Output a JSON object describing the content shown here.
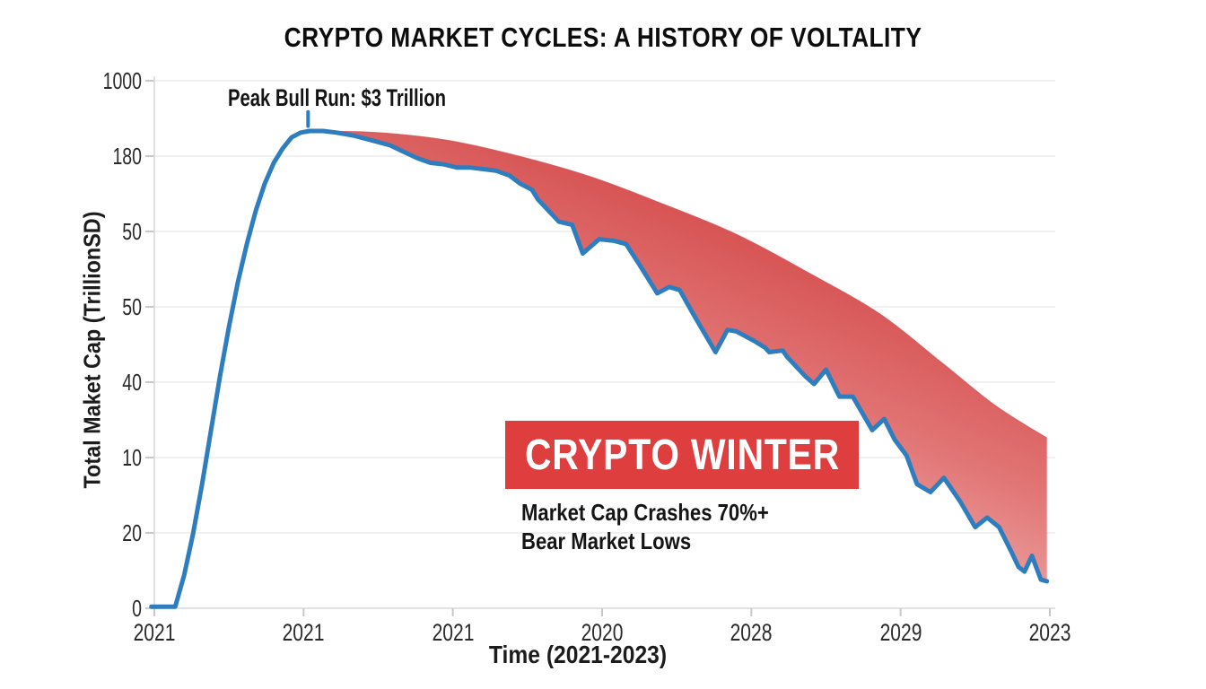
{
  "title": "CRYPTO MARKET CYCLES: A HISTORY OF VOLTALITY",
  "annotations": {
    "peak_label": "Peak Bull Run: $3 Trillion",
    "winter_label": "CRYPTO WINTER",
    "winter_sub1": "Market Cap Crashes 70%+",
    "winter_sub2": "Bear Market Lows"
  },
  "colors": {
    "line_blue": "#2e7dbe",
    "band_red_dark": "#d75454",
    "band_red_mid": "#e17474",
    "band_red_light": "#f8d6d6",
    "winter_box_red": "#df3e3e",
    "grid_gray": "#ebebeb",
    "axis_gray": "#d9d9d9",
    "tick_gray": "#c8c8c8"
  },
  "chart_data": {
    "type": "line",
    "title": "CRYPTO MARKET CYCLES: A HISTORY OF VOLTALITY",
    "xlabel": "Time (2021-2023)",
    "ylabel": "Total Maket Cap (TrillionSD)",
    "x_tick_labels": [
      "2021",
      "2021",
      "2021",
      "2020",
      "2028",
      "2029",
      "2023"
    ],
    "y_tick_labels": [
      "1000",
      "180",
      "50",
      "50",
      "40",
      "10",
      "20",
      "0"
    ],
    "grid": "horizontal",
    "legend": "none",
    "peak_value_trillions": 3,
    "crash_note": "70%+",
    "units": "trillion USD (as annotated: peak $3 Trillion)",
    "x_units": "tick index 0-6 across time axis 2021-2023",
    "series": [
      {
        "name": "Total Market Cap (actual, jagged line)",
        "color": "#2e7dbe",
        "points": [
          [
            -0.02,
            0.01
          ],
          [
            0.14,
            0.01
          ],
          [
            0.2,
            0.21
          ],
          [
            0.26,
            0.47
          ],
          [
            0.32,
            0.78
          ],
          [
            0.38,
            1.12
          ],
          [
            0.44,
            1.46
          ],
          [
            0.5,
            1.77
          ],
          [
            0.56,
            2.05
          ],
          [
            0.62,
            2.29
          ],
          [
            0.68,
            2.5
          ],
          [
            0.74,
            2.67
          ],
          [
            0.8,
            2.8
          ],
          [
            0.86,
            2.89
          ],
          [
            0.92,
            2.96
          ],
          [
            0.98,
            2.99
          ],
          [
            1.04,
            3.0
          ],
          [
            1.13,
            3.0
          ],
          [
            1.22,
            2.99
          ],
          [
            1.34,
            2.97
          ],
          [
            1.46,
            2.94
          ],
          [
            1.58,
            2.91
          ],
          [
            1.67,
            2.87
          ],
          [
            1.76,
            2.83
          ],
          [
            1.85,
            2.8
          ],
          [
            1.94,
            2.79
          ],
          [
            2.03,
            2.77
          ],
          [
            2.12,
            2.77
          ],
          [
            2.21,
            2.76
          ],
          [
            2.29,
            2.75
          ],
          [
            2.38,
            2.72
          ],
          [
            2.45,
            2.67
          ],
          [
            2.53,
            2.63
          ],
          [
            2.57,
            2.57
          ],
          [
            2.71,
            2.43
          ],
          [
            2.8,
            2.41
          ],
          [
            2.87,
            2.23
          ],
          [
            2.98,
            2.32
          ],
          [
            3.08,
            2.31
          ],
          [
            3.16,
            2.29
          ],
          [
            3.25,
            2.16
          ],
          [
            3.37,
            1.98
          ],
          [
            3.45,
            2.02
          ],
          [
            3.52,
            2.0
          ],
          [
            3.61,
            1.85
          ],
          [
            3.66,
            1.77
          ],
          [
            3.76,
            1.61
          ],
          [
            3.84,
            1.75
          ],
          [
            3.9,
            1.74
          ],
          [
            4.02,
            1.68
          ],
          [
            4.09,
            1.64
          ],
          [
            4.12,
            1.61
          ],
          [
            4.21,
            1.62
          ],
          [
            4.24,
            1.58
          ],
          [
            4.36,
            1.46
          ],
          [
            4.42,
            1.41
          ],
          [
            4.5,
            1.5
          ],
          [
            4.59,
            1.33
          ],
          [
            4.68,
            1.33
          ],
          [
            4.81,
            1.12
          ],
          [
            4.89,
            1.19
          ],
          [
            4.96,
            1.06
          ],
          [
            5.04,
            0.96
          ],
          [
            5.11,
            0.78
          ],
          [
            5.2,
            0.73
          ],
          [
            5.29,
            0.82
          ],
          [
            5.4,
            0.67
          ],
          [
            5.5,
            0.51
          ],
          [
            5.58,
            0.57
          ],
          [
            5.66,
            0.51
          ],
          [
            5.74,
            0.36
          ],
          [
            5.79,
            0.26
          ],
          [
            5.83,
            0.23
          ],
          [
            5.88,
            0.33
          ],
          [
            5.94,
            0.18
          ],
          [
            5.98,
            0.17
          ]
        ]
      },
      {
        "name": "Bull-trend envelope (top edge of red drawdown band)",
        "color": "#d75454",
        "points": [
          [
            1.04,
            3.0
          ],
          [
            1.49,
            2.99
          ],
          [
            1.97,
            2.94
          ],
          [
            2.45,
            2.84
          ],
          [
            2.93,
            2.71
          ],
          [
            3.41,
            2.54
          ],
          [
            3.9,
            2.35
          ],
          [
            4.38,
            2.11
          ],
          [
            4.86,
            1.85
          ],
          [
            5.28,
            1.54
          ],
          [
            5.64,
            1.27
          ],
          [
            5.98,
            1.07
          ]
        ]
      }
    ],
    "band": {
      "description": "red gradient area between envelope and actual market-cap line (drawdown / crypto winter)",
      "gradient": [
        "#d75454",
        "#e17474",
        "#eda2a2",
        "#f8d6d6"
      ]
    },
    "peak_marker": {
      "t": 1.03,
      "v_from": 3.03,
      "v_to": 3.12
    }
  }
}
